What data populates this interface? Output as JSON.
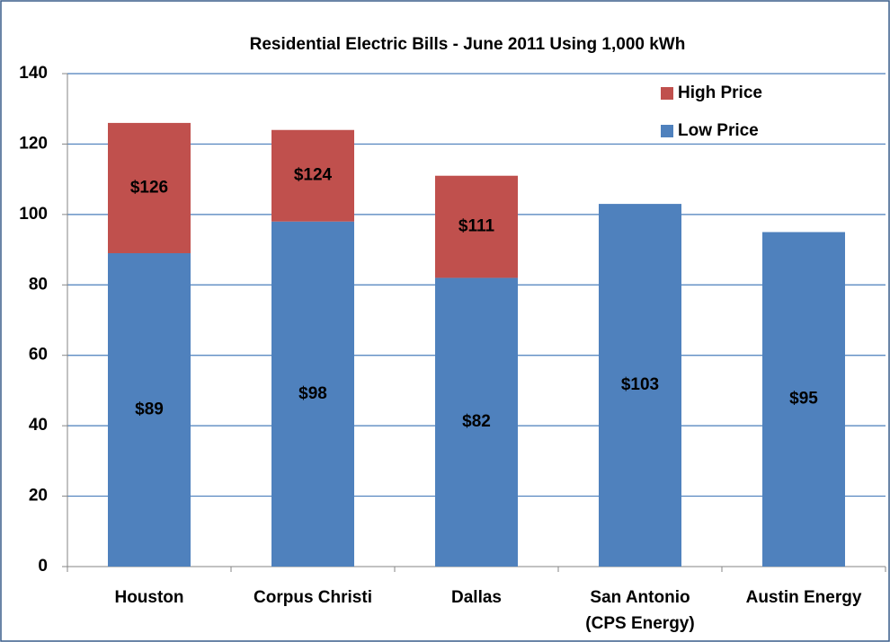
{
  "chart_data": {
    "type": "stacked_bar",
    "title": "Residential Electric Bills - June 2011 Using 1,000 kWh",
    "categories": [
      "Houston",
      "Corpus Christi",
      "Dallas",
      "San Antonio\n(CPS Energy)",
      "Austin Energy"
    ],
    "series": [
      {
        "name": "Low Price",
        "color": "#4f81bd",
        "values": [
          89,
          98,
          82,
          103,
          95
        ],
        "value_labels": [
          "$89",
          "$98",
          "$82",
          "$103",
          "$95"
        ]
      },
      {
        "name": "High Price",
        "color": "#c0504d",
        "values": [
          37,
          26,
          29,
          null,
          null
        ]
      }
    ],
    "totals": {
      "values": [
        126,
        124,
        111,
        null,
        null
      ],
      "value_labels": [
        "$126",
        "$124",
        "$111",
        null,
        null
      ]
    },
    "ylim": [
      0,
      140
    ],
    "yticks": [
      0,
      20,
      40,
      60,
      80,
      100,
      120,
      140
    ],
    "grid": true,
    "legend": "top-right"
  }
}
